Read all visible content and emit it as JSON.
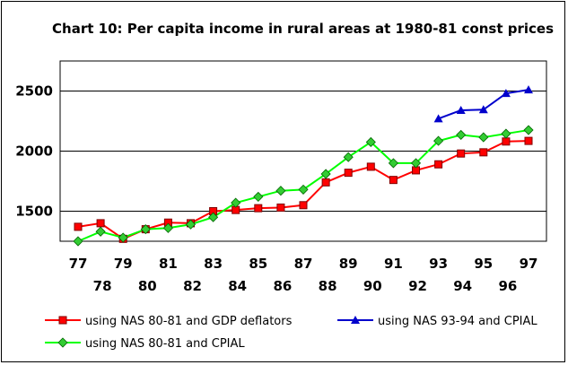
{
  "chart_data": {
    "type": "line",
    "title": "Chart 10: Per capita income in rural areas at 1980-81 const prices",
    "xlabel": "",
    "ylabel": "",
    "x": [
      "77",
      "78",
      "79",
      "80",
      "81",
      "82",
      "83",
      "84",
      "85",
      "86",
      "87",
      "88",
      "89",
      "90",
      "91",
      "92",
      "93",
      "94",
      "95",
      "96",
      "97"
    ],
    "x_tick_labels_upper": [
      "77",
      "79",
      "81",
      "83",
      "85",
      "87",
      "89",
      "91",
      "93",
      "95",
      "97"
    ],
    "x_tick_labels_lower": [
      "78",
      "80",
      "82",
      "84",
      "86",
      "88",
      "90",
      "92",
      "94",
      "96"
    ],
    "y_ticks": [
      1500,
      2000,
      2500
    ],
    "ylim": [
      1250,
      2750
    ],
    "grid": "horizontal",
    "legend_position": "bottom",
    "series": [
      {
        "name": "using NAS 80-81 and GDP deflators",
        "color": "#ff0000",
        "marker": "square",
        "values": [
          1370,
          1400,
          1270,
          1350,
          1405,
          1400,
          1500,
          1510,
          1525,
          1530,
          1550,
          1740,
          1820,
          1870,
          1760,
          1840,
          1890,
          1980,
          1990,
          2080,
          2085
        ]
      },
      {
        "name": "using NAS 80-81 and CPIAL",
        "color": "#00ff00",
        "marker": "diamond",
        "values": [
          1250,
          1330,
          1280,
          1350,
          1360,
          1390,
          1450,
          1570,
          1620,
          1670,
          1680,
          1810,
          1950,
          2075,
          1900,
          1900,
          2085,
          2135,
          2115,
          2145,
          2175
        ]
      },
      {
        "name": "using NAS 93-94 and CPIAL",
        "color": "#0000cc",
        "marker": "triangle",
        "values": [
          null,
          null,
          null,
          null,
          null,
          null,
          null,
          null,
          null,
          null,
          null,
          null,
          null,
          null,
          null,
          null,
          2270,
          2340,
          2345,
          2480,
          2510
        ]
      }
    ]
  },
  "colors": {
    "plot_background": "#ffffff",
    "gridline": "#000000"
  }
}
